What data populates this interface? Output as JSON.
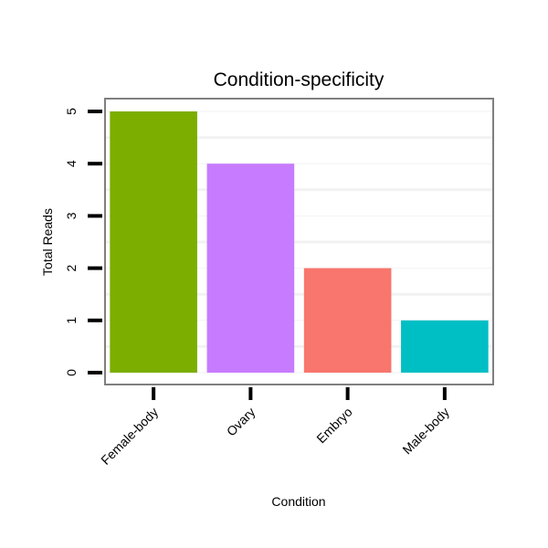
{
  "chart_data": {
    "type": "bar",
    "title": "Condition-specificity",
    "xlabel": "Condition",
    "ylabel": "Total Reads",
    "categories": [
      "Female-body",
      "Ovary",
      "Embryo",
      "Male-body"
    ],
    "values": [
      5,
      4,
      2,
      1
    ],
    "colors": [
      "#7CAE00",
      "#C77CFF",
      "#F8766D",
      "#00BFC4"
    ],
    "ylim": [
      0,
      5
    ],
    "yticks": [
      "0",
      "1",
      "2",
      "3",
      "4",
      "5"
    ],
    "grid": true,
    "legend": "none"
  }
}
